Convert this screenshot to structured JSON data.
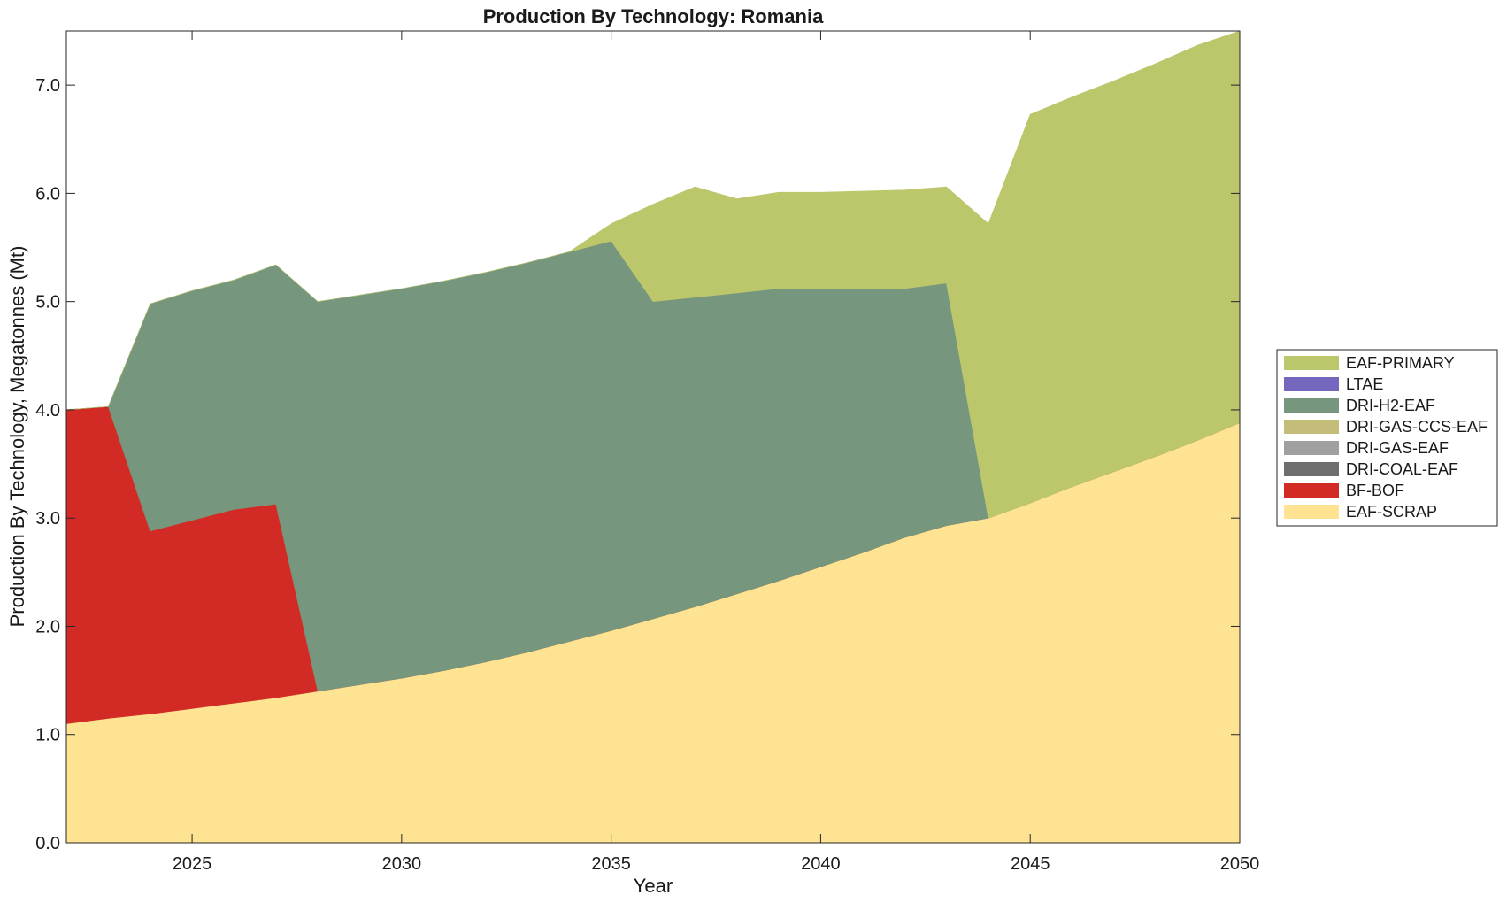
{
  "chart_data": {
    "type": "area",
    "title": "Production By Technology: Romania",
    "xlabel": "Year",
    "ylabel": "Production By Technology, Megatonnes (Mt)",
    "xlim": [
      2022,
      2050
    ],
    "ylim": [
      0,
      7.5
    ],
    "grid": false,
    "legend_position": "right",
    "x_ticks": [
      2025,
      2030,
      2035,
      2040,
      2045,
      2050
    ],
    "y_ticks": [
      "0.0",
      "1.0",
      "2.0",
      "3.0",
      "4.0",
      "5.0",
      "6.0",
      "7.0"
    ],
    "x": [
      2022,
      2023,
      2024,
      2025,
      2026,
      2027,
      2028,
      2029,
      2030,
      2031,
      2032,
      2033,
      2034,
      2035,
      2036,
      2037,
      2038,
      2039,
      2040,
      2041,
      2042,
      2043,
      2044,
      2045,
      2046,
      2047,
      2048,
      2049,
      2050
    ],
    "series": [
      {
        "name": "EAF-SCRAP",
        "color": "#FDE392",
        "values": [
          1.1,
          1.15,
          1.19,
          1.24,
          1.29,
          1.34,
          1.4,
          1.46,
          1.52,
          1.59,
          1.67,
          1.76,
          1.86,
          1.96,
          2.07,
          2.18,
          2.3,
          2.42,
          2.55,
          2.68,
          2.82,
          2.93,
          3.0,
          3.14,
          3.29,
          3.43,
          3.57,
          3.72,
          3.88
        ]
      },
      {
        "name": "BF-BOF",
        "color": "#D22B25",
        "values": [
          2.9,
          2.88,
          1.69,
          1.74,
          1.79,
          1.79,
          0,
          0,
          0,
          0,
          0,
          0,
          0,
          0,
          0,
          0,
          0,
          0,
          0,
          0,
          0,
          0,
          0,
          0,
          0,
          0,
          0,
          0,
          0
        ]
      },
      {
        "name": "DRI-COAL-EAF",
        "color": "#6E6E6E",
        "values": [
          0,
          0,
          0,
          0,
          0,
          0,
          0,
          0,
          0,
          0,
          0,
          0,
          0,
          0,
          0,
          0,
          0,
          0,
          0,
          0,
          0,
          0,
          0,
          0,
          0,
          0,
          0,
          0,
          0
        ]
      },
      {
        "name": "DRI-GAS-EAF",
        "color": "#A0A0A0",
        "values": [
          0,
          0,
          0,
          0,
          0,
          0,
          0,
          0,
          0,
          0,
          0,
          0,
          0,
          0,
          0,
          0,
          0,
          0,
          0,
          0,
          0,
          0,
          0,
          0,
          0,
          0,
          0,
          0,
          0
        ]
      },
      {
        "name": "DRI-GAS-CCS-EAF",
        "color": "#C4BC79",
        "values": [
          0,
          0,
          0,
          0,
          0,
          0,
          0,
          0,
          0,
          0,
          0,
          0,
          0,
          0,
          0,
          0,
          0,
          0,
          0,
          0,
          0,
          0,
          0,
          0,
          0,
          0,
          0,
          0,
          0
        ]
      },
      {
        "name": "DRI-H2-EAF",
        "color": "#76967D",
        "values": [
          0,
          0,
          2.1,
          2.12,
          2.12,
          2.21,
          3.6,
          3.6,
          3.6,
          3.6,
          3.6,
          3.6,
          3.6,
          3.6,
          2.93,
          2.86,
          2.78,
          2.7,
          2.57,
          2.44,
          2.3,
          2.24,
          0,
          0,
          0,
          0,
          0,
          0,
          0
        ]
      },
      {
        "name": "LTAE",
        "color": "#7467BE",
        "values": [
          0,
          0,
          0,
          0,
          0,
          0,
          0,
          0,
          0,
          0,
          0,
          0,
          0,
          0,
          0,
          0,
          0,
          0,
          0,
          0,
          0,
          0,
          0,
          0,
          0,
          0,
          0,
          0,
          0
        ]
      },
      {
        "name": "EAF-PRIMARY",
        "color": "#BCC76C",
        "values": [
          0,
          0,
          0,
          0,
          0,
          0,
          0,
          0,
          0,
          0,
          0,
          0,
          0,
          0.16,
          0.9,
          1.02,
          0.87,
          0.89,
          0.89,
          0.9,
          0.91,
          0.89,
          2.72,
          3.59,
          3.6,
          3.61,
          3.63,
          3.65,
          3.62
        ]
      }
    ]
  }
}
